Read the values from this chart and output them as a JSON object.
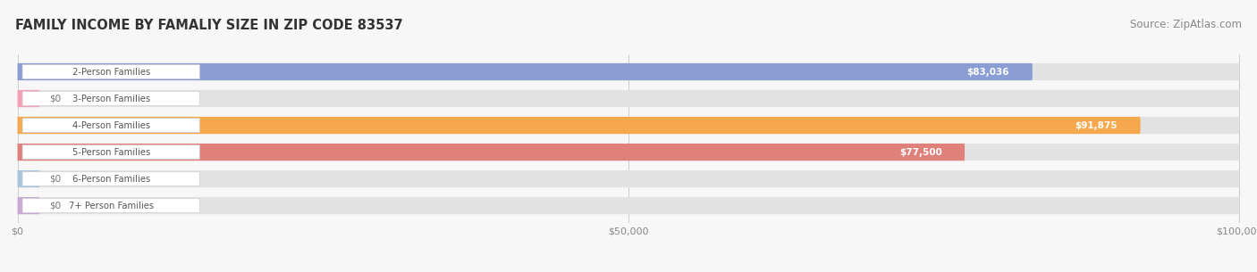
{
  "title": "FAMILY INCOME BY FAMALIY SIZE IN ZIP CODE 83537",
  "source": "Source: ZipAtlas.com",
  "categories": [
    "2-Person Families",
    "3-Person Families",
    "4-Person Families",
    "5-Person Families",
    "6-Person Families",
    "7+ Person Families"
  ],
  "values": [
    83036,
    0,
    91875,
    77500,
    0,
    0
  ],
  "bar_colors": [
    "#8b9ed4",
    "#f4a0b5",
    "#f5a84c",
    "#e0807a",
    "#a8c4de",
    "#c9a8d4"
  ],
  "value_labels": [
    "$83,036",
    "$0",
    "$91,875",
    "$77,500",
    "$0",
    "$0"
  ],
  "xlim_max": 100000,
  "xtick_labels": [
    "$0",
    "$50,000",
    "$100,000"
  ],
  "xtick_values": [
    0,
    50000,
    100000
  ],
  "background_color": "#f7f7f7",
  "bar_bg_color": "#e2e2e2",
  "title_fontsize": 10.5,
  "source_fontsize": 8.5,
  "bar_height": 0.64,
  "figsize": [
    14.06,
    3.05
  ],
  "dpi": 100
}
